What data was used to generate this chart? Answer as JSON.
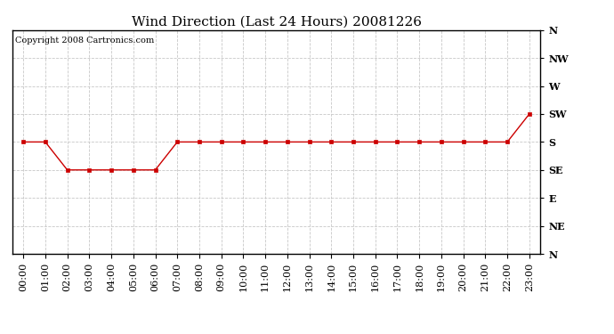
{
  "title": "Wind Direction (Last 24 Hours) 20081226",
  "copyright": "Copyright 2008 Cartronics.com",
  "hours": [
    0,
    1,
    2,
    3,
    4,
    5,
    6,
    7,
    8,
    9,
    10,
    11,
    12,
    13,
    14,
    15,
    16,
    17,
    18,
    19,
    20,
    21,
    22,
    23
  ],
  "hour_labels": [
    "00:00",
    "01:00",
    "02:00",
    "03:00",
    "04:00",
    "05:00",
    "06:00",
    "07:00",
    "08:00",
    "09:00",
    "10:00",
    "11:00",
    "12:00",
    "13:00",
    "14:00",
    "15:00",
    "16:00",
    "17:00",
    "18:00",
    "19:00",
    "20:00",
    "21:00",
    "22:00",
    "23:00"
  ],
  "wind_values": [
    180,
    180,
    135,
    135,
    135,
    135,
    135,
    180,
    180,
    180,
    180,
    180,
    180,
    180,
    180,
    180,
    180,
    180,
    180,
    180,
    180,
    180,
    180,
    225
  ],
  "line_color": "#cc0000",
  "marker_color": "#cc0000",
  "bg_color": "#ffffff",
  "grid_color": "#c8c8c8",
  "border_color": "#000000",
  "yticks": [
    360,
    315,
    270,
    225,
    180,
    135,
    90,
    45,
    0
  ],
  "ylabels": [
    "N",
    "NW",
    "W",
    "SW",
    "S",
    "SE",
    "E",
    "NE",
    "N"
  ],
  "ymin": 0,
  "ymax": 360,
  "title_fontsize": 11,
  "axis_fontsize": 8,
  "copyright_fontsize": 7
}
